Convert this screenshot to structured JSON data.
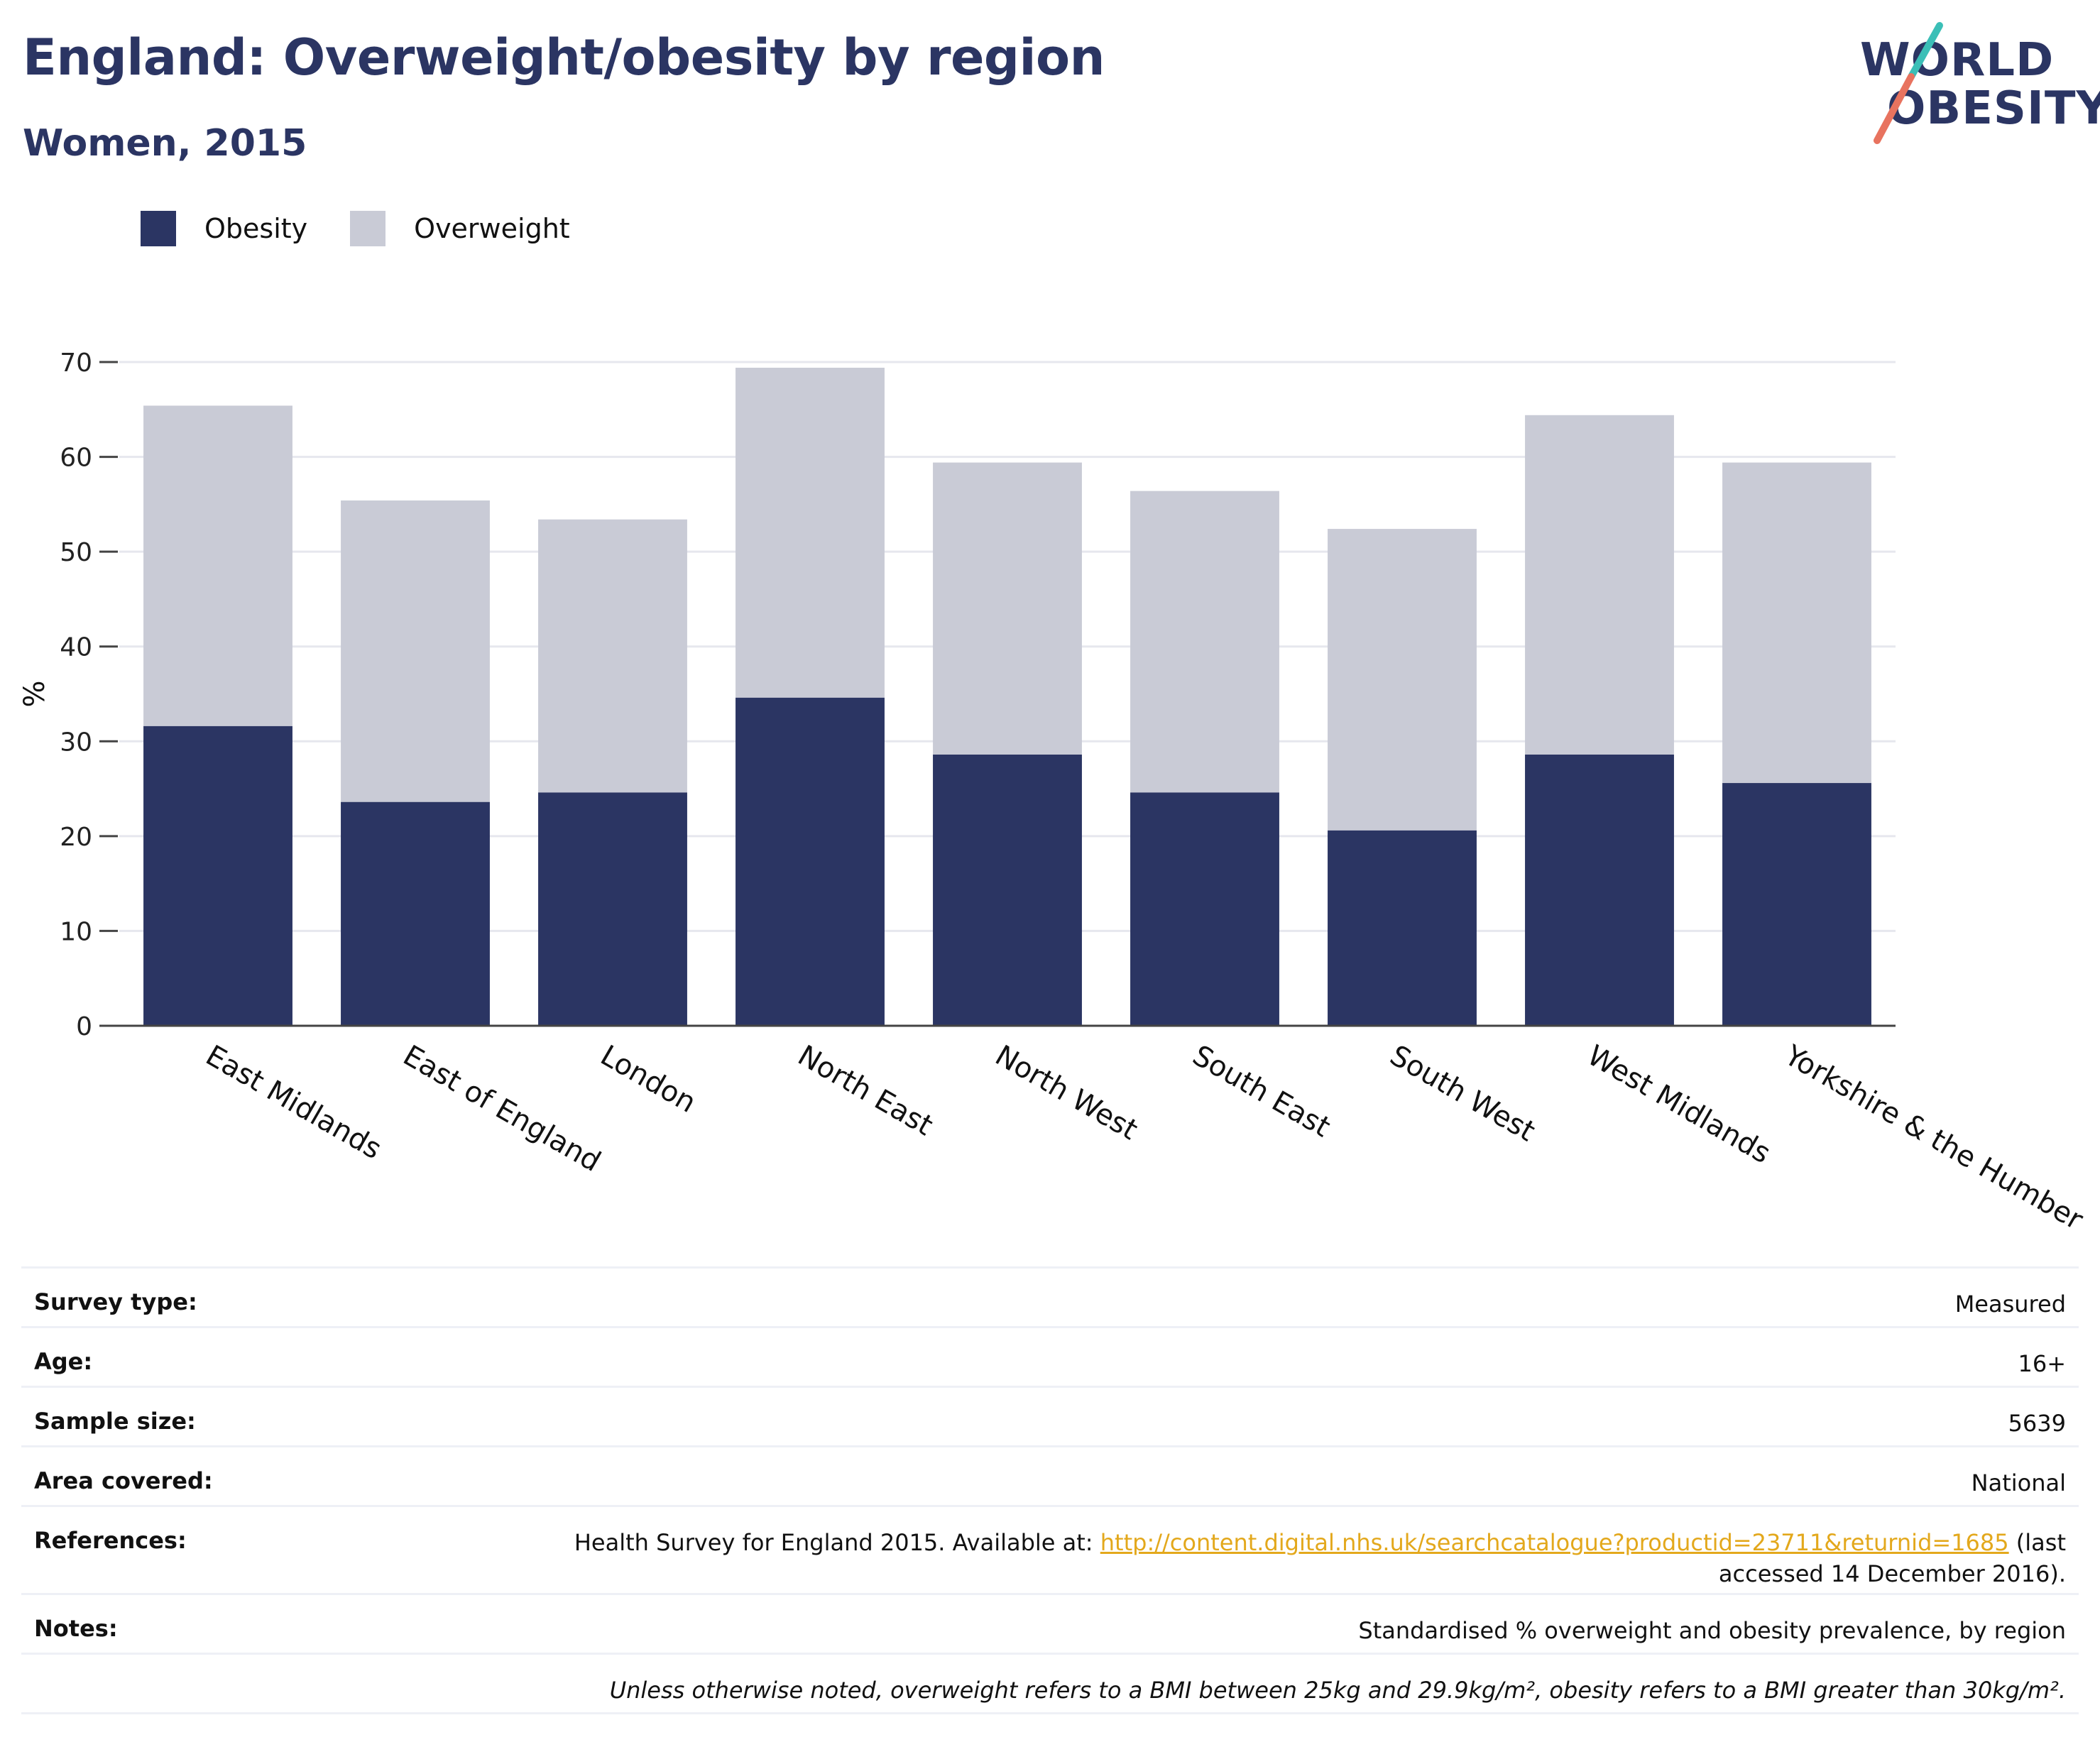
{
  "header": {
    "title": "England: Overweight/obesity by region",
    "subtitle": "Women, 2015",
    "logo_line1": "WORLD",
    "logo_line2": "OBESITY"
  },
  "legend": {
    "items": [
      {
        "label": "Obesity",
        "color": "#2b3563"
      },
      {
        "label": "Overweight",
        "color": "#c9cbd6"
      }
    ]
  },
  "colors": {
    "obesity": "#2b3563",
    "overweight": "#c9cbd6",
    "logo_teal": "#3bbfb7",
    "logo_coral": "#e8735f",
    "link": "#e3a81c"
  },
  "chart_data": {
    "type": "bar",
    "stacked": true,
    "categories": [
      "East Midlands",
      "East of England",
      "London",
      "North East",
      "North West",
      "South East",
      "South West",
      "West Midlands",
      "Yorkshire & the Humber"
    ],
    "series": [
      {
        "name": "Obesity",
        "values": [
          31.6,
          23.6,
          24.6,
          34.6,
          28.6,
          24.6,
          20.6,
          28.6,
          25.6
        ]
      },
      {
        "name": "Overweight",
        "values": [
          33.8,
          31.8,
          28.8,
          34.8,
          30.8,
          31.8,
          31.8,
          35.8,
          33.8
        ]
      }
    ],
    "title": "",
    "xlabel": "",
    "ylabel": "%",
    "ylim": [
      0,
      70
    ],
    "yticks": [
      0,
      10,
      20,
      30,
      40,
      50,
      60,
      70
    ],
    "grid": true,
    "legend_position": "top-left"
  },
  "info": {
    "survey_type": {
      "label": "Survey type:",
      "value": "Measured"
    },
    "age": {
      "label": "Age:",
      "value": "16+"
    },
    "sample_size": {
      "label": "Sample size:",
      "value": "5639"
    },
    "area_covered": {
      "label": "Area covered:",
      "value": "National"
    },
    "references": {
      "label": "References:",
      "prefix": "Health Survey for England 2015. Available at: ",
      "link": "http://content.digital.nhs.uk/searchcatalogue?productid=23711&returnid=1685",
      "suffix_1": " (last",
      "suffix_2": "accessed 14 December 2016)."
    },
    "notes": {
      "label": "Notes:",
      "value": "Standardised % overweight and obesity prevalence, by region"
    },
    "footnote": "Unless otherwise noted, overweight refers to a BMI between 25kg and 29.9kg/m², obesity refers to a BMI greater than 30kg/m²."
  }
}
